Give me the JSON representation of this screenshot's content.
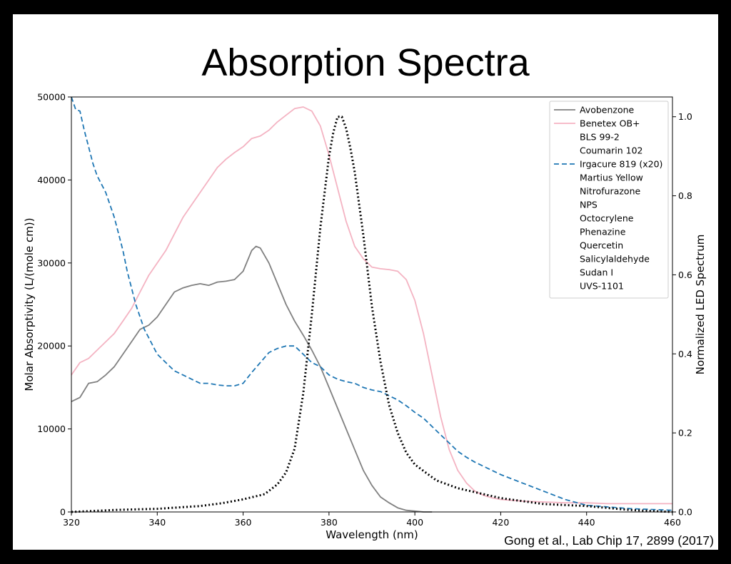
{
  "slide": {
    "title": "Absorption Spectra",
    "citation": "Gong et al., Lab Chip 17, 2899 (2017)"
  },
  "chart_data": {
    "type": "line",
    "xlabel": "Wavelength (nm)",
    "ylabel": "Molar Absorptivity (L/(mole cm))",
    "y2label": "Normalized LED Spectrum",
    "xlim": [
      320,
      460
    ],
    "ylim": [
      0,
      50000
    ],
    "y2lim": [
      0,
      1.05
    ],
    "xticks": [
      320,
      340,
      360,
      380,
      400,
      420,
      440,
      460
    ],
    "yticks": [
      0,
      10000,
      20000,
      30000,
      40000,
      50000
    ],
    "y2ticks": [
      "0.0",
      "0.2",
      "0.4",
      "0.6",
      "0.8",
      "1.0"
    ],
    "grid": false,
    "legend_position": "top-right",
    "legend": [
      {
        "label": "Avobenzone",
        "color": "#808080",
        "dash": "solid"
      },
      {
        "label": "Benetex OB+",
        "color": "#f4b3c2",
        "dash": "solid"
      },
      {
        "label": "BLS 99-2",
        "color": null,
        "dash": "none"
      },
      {
        "label": "Coumarin 102",
        "color": null,
        "dash": "none"
      },
      {
        "label": "Irgacure 819 (x20)",
        "color": "#1f77b4",
        "dash": "dashed"
      },
      {
        "label": "Martius Yellow",
        "color": null,
        "dash": "none"
      },
      {
        "label": "Nitrofurazone",
        "color": null,
        "dash": "none"
      },
      {
        "label": "NPS",
        "color": null,
        "dash": "none"
      },
      {
        "label": "Octocrylene",
        "color": null,
        "dash": "none"
      },
      {
        "label": "Phenazine",
        "color": null,
        "dash": "none"
      },
      {
        "label": "Quercetin",
        "color": null,
        "dash": "none"
      },
      {
        "label": "Salicylaldehyde",
        "color": null,
        "dash": "none"
      },
      {
        "label": "Sudan I",
        "color": null,
        "dash": "none"
      },
      {
        "label": "UVS-1101",
        "color": null,
        "dash": "none"
      }
    ],
    "series": [
      {
        "name": "Avobenzone",
        "color": "#808080",
        "dash": "solid",
        "axis": "left",
        "x": [
          320,
          322,
          324,
          326,
          328,
          330,
          332,
          334,
          336,
          338,
          340,
          342,
          344,
          346,
          348,
          350,
          352,
          354,
          356,
          358,
          360,
          362,
          363,
          364,
          366,
          368,
          370,
          372,
          374,
          376,
          378,
          380,
          382,
          384,
          386,
          388,
          390,
          392,
          394,
          396,
          398,
          400,
          402,
          404
        ],
        "y": [
          13300,
          13800,
          15500,
          15700,
          16500,
          17500,
          19000,
          20500,
          22000,
          22500,
          23500,
          25000,
          26500,
          27000,
          27300,
          27500,
          27300,
          27700,
          27800,
          28000,
          29000,
          31500,
          32000,
          31800,
          30000,
          27500,
          25000,
          23000,
          21300,
          19500,
          17500,
          15000,
          12500,
          10000,
          7500,
          5000,
          3200,
          1800,
          1100,
          500,
          200,
          100,
          0,
          0
        ]
      },
      {
        "name": "Benetex OB+",
        "color": "#f4b3c2",
        "dash": "solid",
        "axis": "left",
        "x": [
          320,
          322,
          324,
          326,
          328,
          330,
          332,
          334,
          336,
          338,
          340,
          342,
          344,
          346,
          348,
          350,
          352,
          354,
          356,
          358,
          360,
          362,
          364,
          366,
          368,
          370,
          372,
          374,
          376,
          378,
          380,
          382,
          384,
          386,
          388,
          390,
          392,
          394,
          396,
          398,
          400,
          402,
          404,
          406,
          408,
          410,
          412,
          414,
          416,
          418,
          420,
          425,
          430,
          435,
          440,
          445,
          450,
          455,
          460
        ],
        "y": [
          16500,
          18000,
          18500,
          19500,
          20500,
          21500,
          23000,
          24500,
          26500,
          28500,
          30000,
          31500,
          33500,
          35500,
          37000,
          38500,
          40000,
          41500,
          42500,
          43300,
          44000,
          45000,
          45300,
          46000,
          47000,
          47800,
          48600,
          48800,
          48300,
          46500,
          43000,
          39000,
          35000,
          32000,
          30500,
          29500,
          29300,
          29200,
          29000,
          28000,
          25500,
          21500,
          16500,
          11500,
          7500,
          5000,
          3500,
          2500,
          2000,
          1700,
          1500,
          1300,
          1200,
          1100,
          1100,
          1000,
          1000,
          1000,
          1000
        ]
      },
      {
        "name": "Irgacure 819 (x20)",
        "color": "#1f77b4",
        "dash": "dashed",
        "axis": "left",
        "x": [
          320,
          321,
          322,
          323,
          324,
          325,
          326,
          327,
          328,
          329,
          330,
          331,
          332,
          333,
          334,
          335,
          336,
          337,
          338,
          339,
          340,
          342,
          344,
          346,
          348,
          350,
          352,
          354,
          356,
          358,
          360,
          362,
          364,
          366,
          368,
          370,
          372,
          374,
          376,
          378,
          380,
          382,
          384,
          386,
          388,
          390,
          392,
          394,
          396,
          398,
          400,
          402,
          404,
          406,
          408,
          410,
          412,
          414,
          416,
          418,
          420,
          425,
          430,
          435,
          440,
          445,
          450,
          455,
          460
        ],
        "y": [
          50000,
          48500,
          48300,
          46000,
          44000,
          42000,
          40500,
          39500,
          38500,
          37000,
          35500,
          33500,
          31500,
          29000,
          27000,
          25000,
          23500,
          22000,
          21000,
          20000,
          19000,
          18000,
          17000,
          16500,
          16000,
          15500,
          15500,
          15300,
          15200,
          15200,
          15500,
          16800,
          18000,
          19200,
          19700,
          20000,
          20000,
          19000,
          18000,
          17500,
          16500,
          16000,
          15700,
          15500,
          15000,
          14700,
          14500,
          14000,
          13500,
          12800,
          12000,
          11300,
          10300,
          9300,
          8300,
          7300,
          6600,
          6000,
          5500,
          5000,
          4500,
          3500,
          2500,
          1500,
          800,
          600,
          400,
          300,
          200
        ]
      },
      {
        "name": "LED spectrum",
        "color": "#000000",
        "dash": "dotted",
        "axis": "right",
        "x": [
          320,
          330,
          340,
          350,
          355,
          360,
          365,
          368,
          370,
          372,
          374,
          376,
          378,
          380,
          381,
          382,
          383,
          384,
          385,
          386,
          388,
          390,
          392,
          394,
          396,
          398,
          400,
          405,
          410,
          420,
          430,
          440,
          450,
          460
        ],
        "y": [
          0.0,
          0.005,
          0.008,
          0.015,
          0.022,
          0.032,
          0.045,
          0.07,
          0.1,
          0.16,
          0.3,
          0.5,
          0.72,
          0.9,
          0.96,
          1.0,
          1.0,
          0.97,
          0.92,
          0.86,
          0.7,
          0.52,
          0.38,
          0.27,
          0.2,
          0.15,
          0.12,
          0.08,
          0.06,
          0.035,
          0.02,
          0.015,
          0.005,
          0.0
        ]
      }
    ]
  }
}
